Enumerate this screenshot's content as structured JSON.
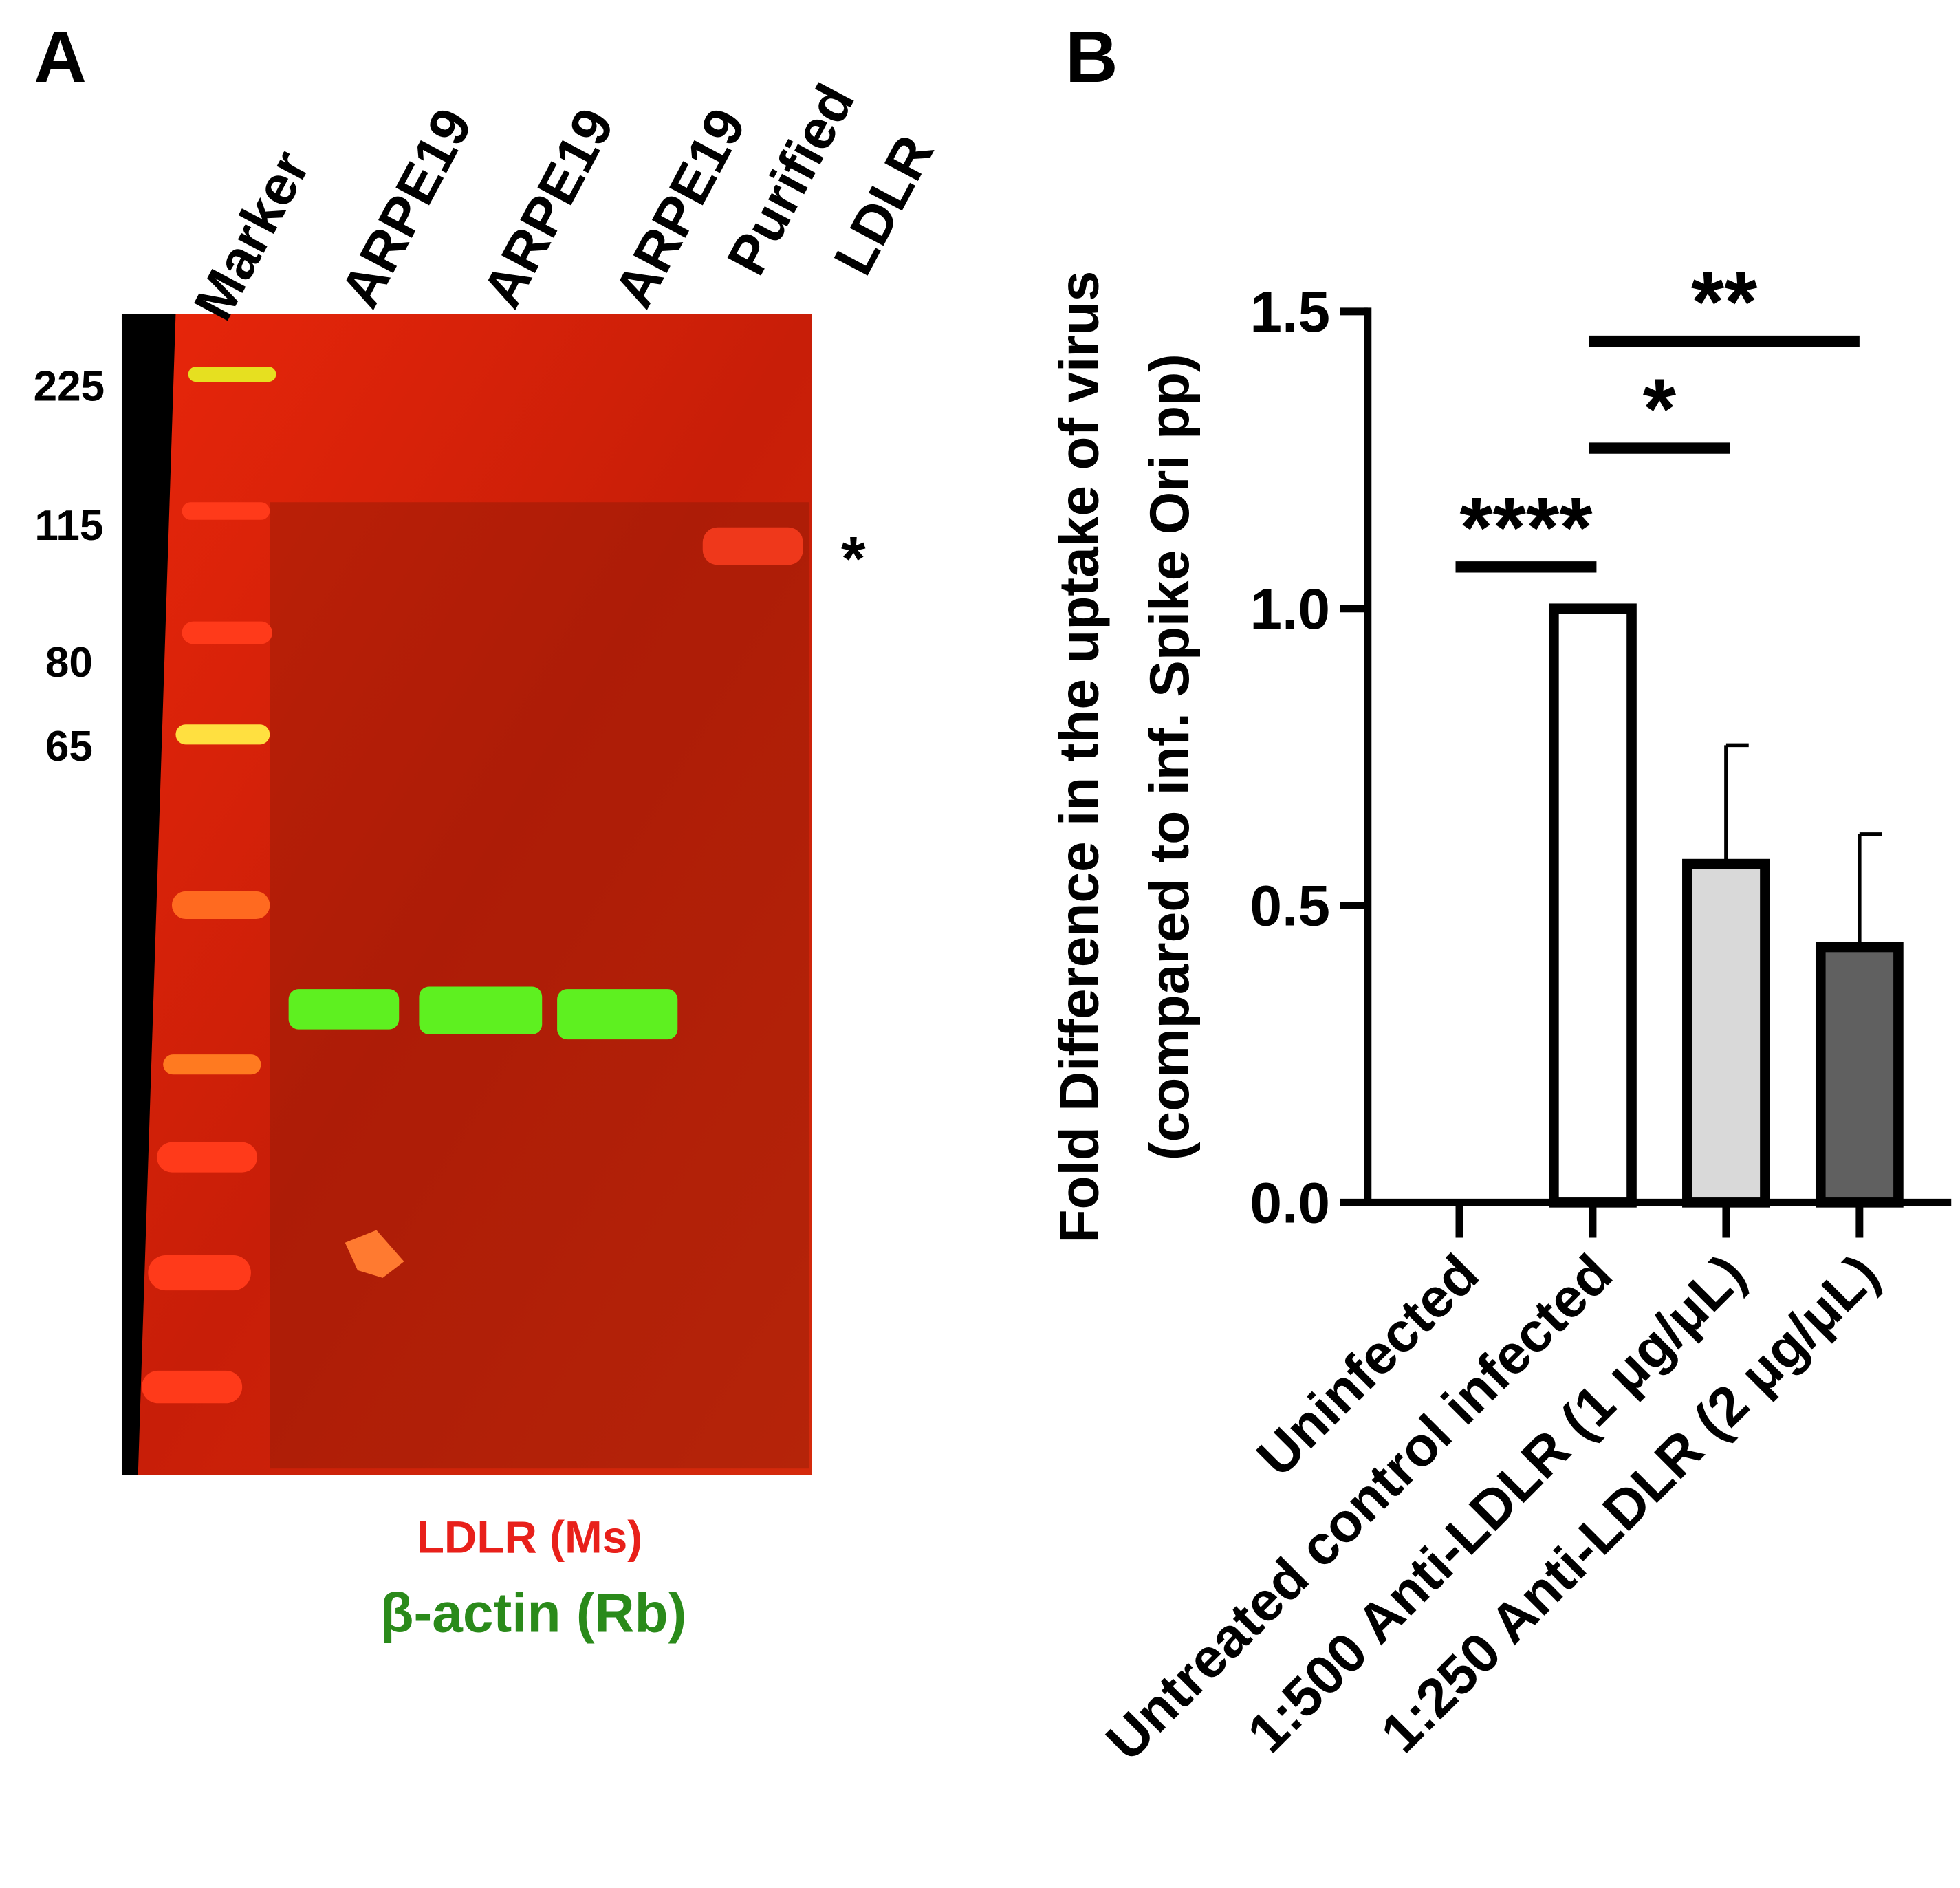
{
  "panel_a": {
    "label": "A",
    "lanes": [
      "Marker",
      "ARPE19",
      "ARPE19",
      "ARPE19",
      "Purified",
      "LDLR"
    ],
    "marker_sizes": [
      225,
      115,
      80,
      65
    ],
    "asterisk": "*",
    "legend": [
      "LDLR (Ms)",
      "β-actin (Rb)"
    ]
  },
  "chart_data": {
    "type": "bar",
    "panel_label": "B",
    "ylabel": [
      "Fold Difference in the uptake of virus",
      "(compared to inf. Spike Ori pp)"
    ],
    "categories": [
      "Uninfected",
      "Untreated control infected",
      "1:500 Anti-LDLR (1 μg/μL)",
      "1:250 Anti-LDLR (2 μg/μL)"
    ],
    "values": [
      0,
      1.0,
      0.57,
      0.43
    ],
    "errors": [
      0,
      0,
      0.2,
      0.19
    ],
    "colors": [
      "#ffffff",
      "#ffffff",
      "#d9d9d9",
      "#606060"
    ],
    "ylim": [
      0,
      1.5
    ],
    "yticks": [
      {
        "value": 0,
        "label": "0.0"
      },
      {
        "value": 0.5,
        "label": "0.5"
      },
      {
        "value": 1,
        "label": "1.0"
      },
      {
        "value": 1.5,
        "label": "1.5"
      }
    ],
    "significance": [
      {
        "text": "****",
        "from": 0,
        "to": 1,
        "y": 1.07
      },
      {
        "text": "*",
        "from": 1,
        "to": 2,
        "y": 1.27
      },
      {
        "text": "**",
        "from": 1,
        "to": 3,
        "y": 1.45
      }
    ]
  }
}
